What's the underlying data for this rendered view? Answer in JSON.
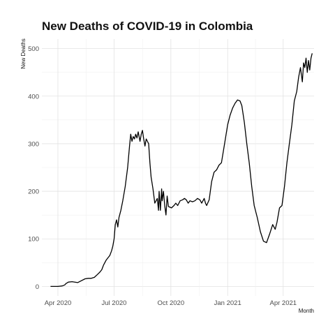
{
  "chart_data": {
    "type": "line",
    "title": "New Deaths of COVID-19 in Colombia",
    "xlabel": "Month",
    "ylabel": "New Deaths",
    "x_ticks": [
      "Apr 2020",
      "Jul 2020",
      "Oct 2020",
      "Jan 2021",
      "Apr 2021"
    ],
    "y_ticks": [
      "0",
      "100",
      "200",
      "300",
      "400",
      "500"
    ],
    "xlim": [
      "2020-03-06",
      "2021-05-21"
    ],
    "ylim": [
      -20,
      520
    ],
    "grid": true,
    "legend": "none",
    "colors": {
      "line": "#000000",
      "grid": "#e2e2e2",
      "background": "#ffffff"
    },
    "series": [
      {
        "x": [
          "2020-03-20",
          "2020-04-01",
          "2020-04-08",
          "2020-04-12",
          "2020-04-14",
          "2020-04-18",
          "2020-04-24",
          "2020-05-03",
          "2020-05-09",
          "2020-05-15",
          "2020-05-20",
          "2020-05-25",
          "2020-05-30",
          "2020-06-04",
          "2020-06-08",
          "2020-06-11",
          "2020-06-14",
          "2020-06-18",
          "2020-06-21",
          "2020-06-24",
          "2020-06-27",
          "2020-06-29",
          "2020-07-01",
          "2020-07-03",
          "2020-07-05",
          "2020-07-07",
          "2020-07-09",
          "2020-07-12",
          "2020-07-15",
          "2020-07-19",
          "2020-07-23",
          "2020-07-26",
          "2020-07-28",
          "2020-07-30",
          "2020-08-01",
          "2020-08-03",
          "2020-08-05",
          "2020-08-07",
          "2020-08-09",
          "2020-08-12",
          "2020-08-14",
          "2020-08-16",
          "2020-08-18",
          "2020-08-20",
          "2020-08-22",
          "2020-08-24",
          "2020-08-26",
          "2020-08-28",
          "2020-08-30",
          "2020-09-02",
          "2020-09-05",
          "2020-09-09",
          "2020-09-11",
          "2020-09-12",
          "2020-09-14",
          "2020-09-16",
          "2020-09-17",
          "2020-09-19",
          "2020-09-21",
          "2020-09-23",
          "2020-09-25",
          "2020-09-27",
          "2020-10-02",
          "2020-10-06",
          "2020-10-09",
          "2020-10-12",
          "2020-10-16",
          "2020-10-20",
          "2020-10-23",
          "2020-10-26",
          "2020-10-29",
          "2020-11-01",
          "2020-11-05",
          "2020-11-09",
          "2020-11-13",
          "2020-11-17",
          "2020-11-20",
          "2020-11-24",
          "2020-11-26",
          "2020-11-28",
          "2020-12-02",
          "2020-12-06",
          "2020-12-10",
          "2020-12-14",
          "2020-12-18",
          "2020-12-22",
          "2020-12-27",
          "2021-01-01",
          "2021-01-05",
          "2021-01-09",
          "2021-01-13",
          "2021-01-17",
          "2021-01-21",
          "2021-01-24",
          "2021-01-28",
          "2021-02-01",
          "2021-02-05",
          "2021-02-09",
          "2021-02-13",
          "2021-02-18",
          "2021-02-23",
          "2021-02-28",
          "2021-03-05",
          "2021-03-10",
          "2021-03-15",
          "2021-03-19",
          "2021-03-22",
          "2021-03-26",
          "2021-03-30",
          "2021-04-03",
          "2021-04-07",
          "2021-04-11",
          "2021-04-15",
          "2021-04-19",
          "2021-04-23",
          "2021-04-26",
          "2021-04-29",
          "2021-05-02",
          "2021-05-04",
          "2021-05-06",
          "2021-05-08",
          "2021-05-10",
          "2021-05-12",
          "2021-05-14",
          "2021-05-16",
          "2021-05-18"
        ],
        "values": [
          0,
          0,
          1,
          3,
          6,
          9,
          10,
          8,
          12,
          16,
          17,
          17,
          19,
          25,
          30,
          35,
          45,
          55,
          60,
          65,
          75,
          85,
          100,
          130,
          140,
          125,
          145,
          160,
          180,
          210,
          250,
          295,
          320,
          305,
          315,
          310,
          320,
          312,
          325,
          305,
          320,
          328,
          310,
          295,
          310,
          305,
          300,
          260,
          230,
          205,
          175,
          185,
          160,
          200,
          160,
          205,
          180,
          200,
          170,
          150,
          190,
          168,
          165,
          170,
          175,
          170,
          180,
          182,
          185,
          182,
          175,
          180,
          178,
          180,
          185,
          182,
          175,
          185,
          175,
          170,
          182,
          220,
          240,
          245,
          255,
          260,
          300,
          340,
          360,
          375,
          385,
          392,
          390,
          380,
          345,
          300,
          260,
          210,
          170,
          145,
          115,
          95,
          92,
          110,
          130,
          120,
          135,
          165,
          170,
          210,
          260,
          300,
          340,
          390,
          410,
          440,
          460,
          430,
          470,
          460,
          480,
          450,
          475,
          455,
          480,
          490
        ]
      }
    ]
  }
}
